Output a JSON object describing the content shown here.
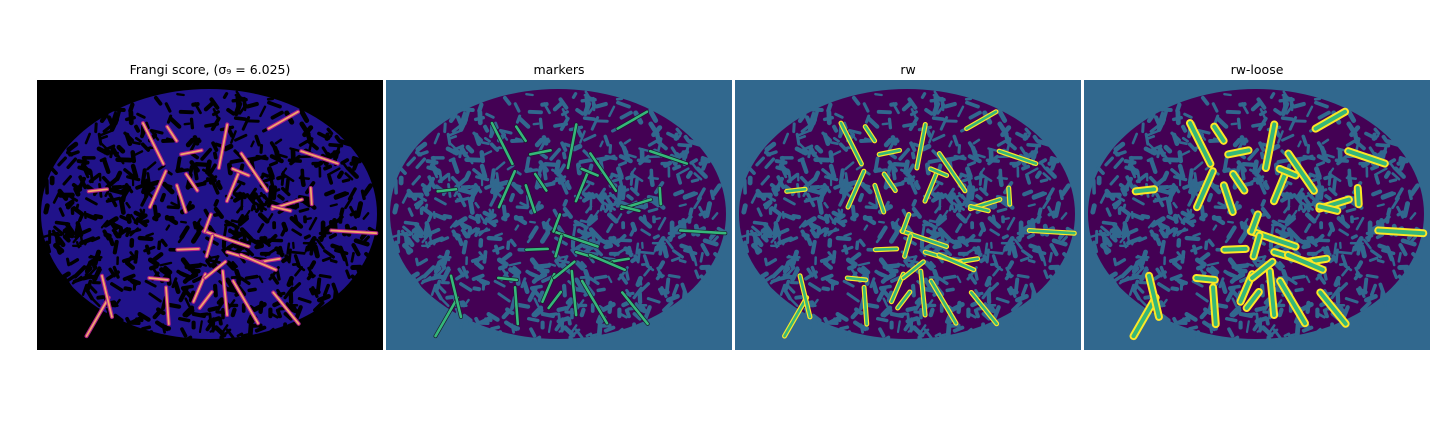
{
  "panels": [
    {
      "id": "frangi",
      "title": "Frangi score, (",
      "math": "σ₉ = 6.025",
      "title_end": ")",
      "bg": "#000000",
      "fg": "#20128a",
      "accent": "#f2a76a"
    },
    {
      "id": "markers",
      "title": "markers",
      "bg": "#31688e",
      "fg": "#440154",
      "accent": "#35b779"
    },
    {
      "id": "rw",
      "title": "rw",
      "bg": "#31688e",
      "fg": "#440154",
      "accent": "#35b779",
      "edge": "#fde725"
    },
    {
      "id": "rw-loose",
      "title": "rw-loose",
      "bg": "#31688e",
      "fg": "#440154",
      "accent": "#35b779",
      "edge": "#fde725"
    }
  ]
}
